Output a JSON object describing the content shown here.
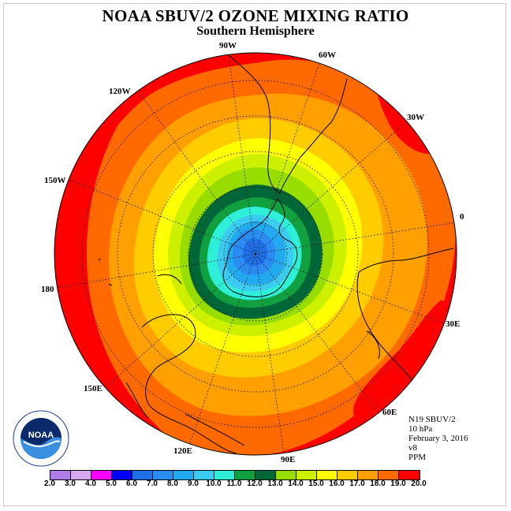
{
  "title": "NOAA SBUV/2 OZONE MIXING RATIO",
  "subtitle": "Southern Hemisphere",
  "info": {
    "instrument": "N19 SBUV/2",
    "level": "10 hPa",
    "date": "February 3, 2016",
    "version": "v8",
    "units": "PPM"
  },
  "logo_text": "NOAA",
  "longitude_labels": [
    {
      "key": "lon_90w",
      "text": "90W"
    },
    {
      "key": "lon_60w",
      "text": "60W"
    },
    {
      "key": "lon_30w",
      "text": "30W"
    },
    {
      "key": "lon_0",
      "text": "0"
    },
    {
      "key": "lon_30e",
      "text": "30E"
    },
    {
      "key": "lon_60e",
      "text": "60E"
    },
    {
      "key": "lon_90e",
      "text": "90E"
    },
    {
      "key": "lon_120e",
      "text": "120E"
    },
    {
      "key": "lon_150e",
      "text": "150E"
    },
    {
      "key": "lon_180",
      "text": "180"
    },
    {
      "key": "lon_150w",
      "text": "150W"
    },
    {
      "key": "lon_120w",
      "text": "120W"
    }
  ],
  "colorbar": {
    "labels": [
      "2.0",
      "3.0",
      "4.0",
      "5.0",
      "6.0",
      "7.0",
      "8.0",
      "9.0",
      "10.0",
      "11.0",
      "12.0",
      "13.0",
      "14.0",
      "15.0",
      "16.0",
      "17.0",
      "18.0",
      "19.0",
      "20.0"
    ],
    "colors": [
      "#b07ce8",
      "#d7a9f2",
      "#ff00ff",
      "#0000ff",
      "#1f6fe6",
      "#2a8cf0",
      "#22aaf0",
      "#3ccbf0",
      "#2ef0d8",
      "#11a040",
      "#006838",
      "#99dd00",
      "#ccf000",
      "#ffff00",
      "#ffcc00",
      "#ffa000",
      "#ff6a00",
      "#ff0000",
      "#8b5a2b"
    ]
  }
}
